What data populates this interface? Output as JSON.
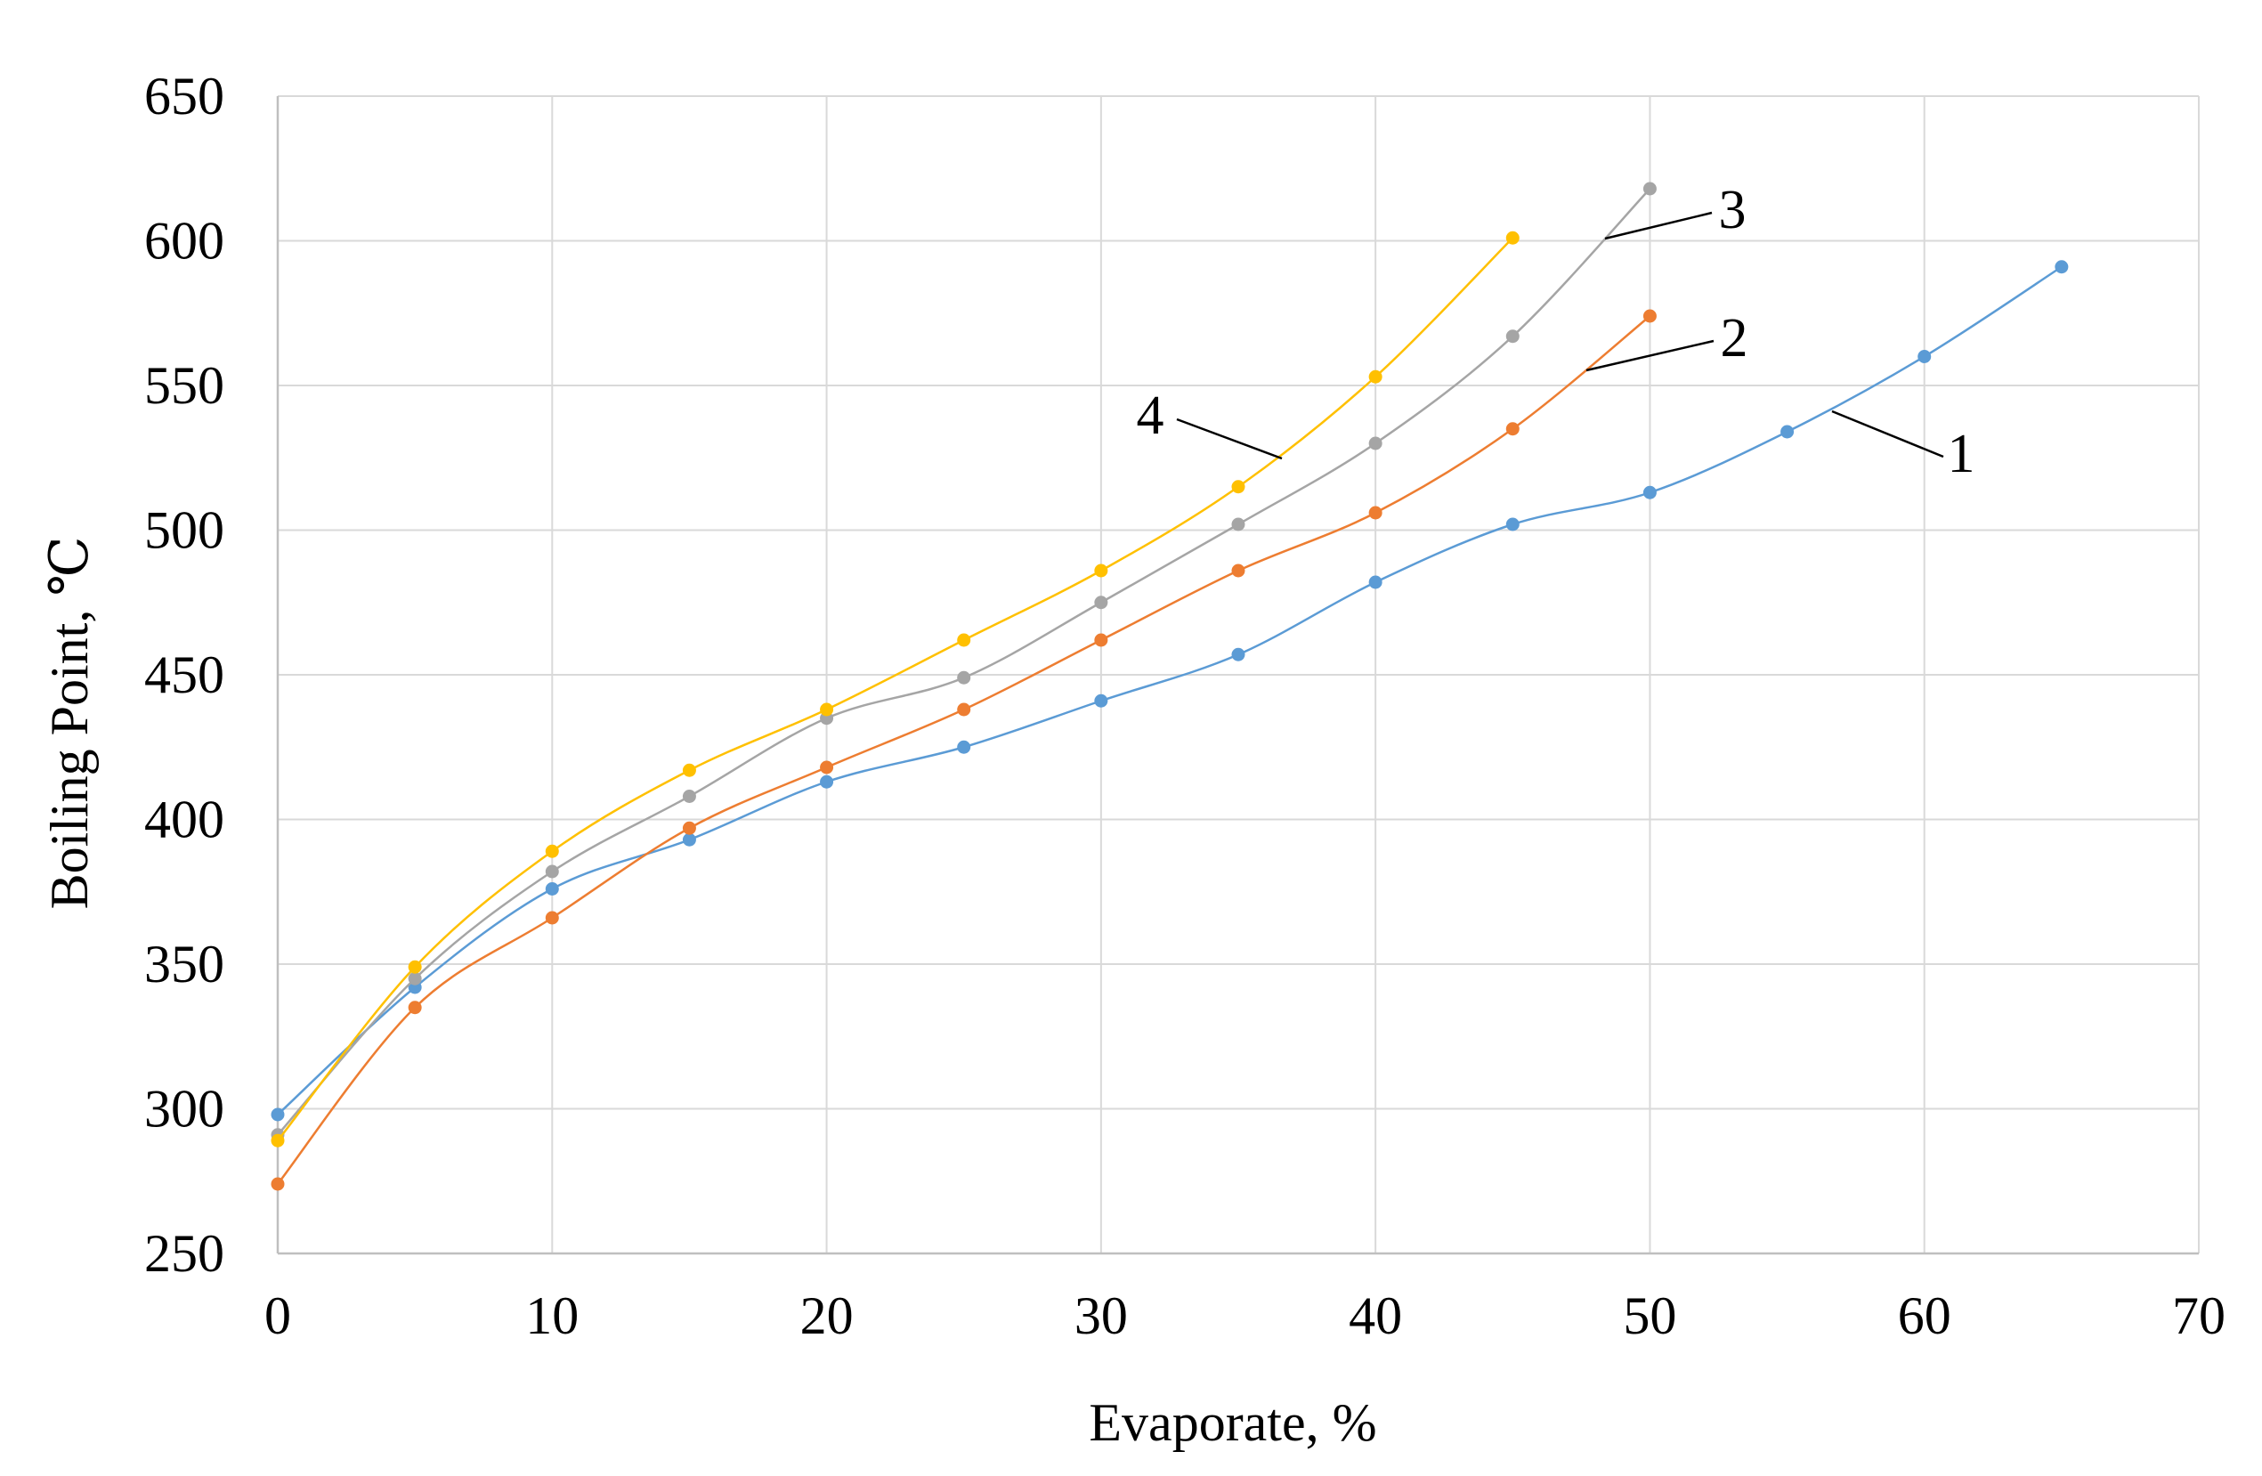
{
  "chart_data": {
    "type": "line",
    "title": "",
    "xlabel": "Evaporate,  %",
    "ylabel": "Boiling Point,  ℃",
    "xlim": [
      0,
      70
    ],
    "ylim": [
      250,
      650
    ],
    "xticks": [
      0,
      10,
      20,
      30,
      40,
      50,
      60,
      70
    ],
    "yticks": [
      250,
      300,
      350,
      400,
      450,
      500,
      550,
      600,
      650
    ],
    "grid": true,
    "legend": "none",
    "series": [
      {
        "name": "1",
        "color": "#5B9BD5",
        "x": [
          0,
          5,
          10,
          15,
          20,
          25,
          30,
          35,
          40,
          45,
          50,
          55,
          60,
          65
        ],
        "y": [
          298,
          342,
          376,
          393,
          413,
          425,
          441,
          457,
          482,
          502,
          513,
          534,
          560,
          591
        ]
      },
      {
        "name": "2",
        "color": "#ED7D31",
        "x": [
          0,
          5,
          10,
          15,
          20,
          25,
          30,
          35,
          40,
          45,
          50
        ],
        "y": [
          274,
          335,
          366,
          397,
          418,
          438,
          462,
          486,
          506,
          535,
          574
        ]
      },
      {
        "name": "3",
        "color": "#A5A5A5",
        "x": [
          0,
          5,
          10,
          15,
          20,
          25,
          30,
          35,
          40,
          45,
          50
        ],
        "y": [
          291,
          345,
          382,
          408,
          435,
          449,
          475,
          502,
          530,
          567,
          618
        ]
      },
      {
        "name": "4",
        "color": "#FFC000",
        "x": [
          0,
          5,
          10,
          15,
          20,
          25,
          30,
          35,
          40,
          45
        ],
        "y": [
          289,
          349,
          389,
          417,
          438,
          462,
          486,
          515,
          553,
          601
        ]
      }
    ],
    "annotations": [
      {
        "text": "1",
        "series": "1"
      },
      {
        "text": "2",
        "series": "2"
      },
      {
        "text": "3",
        "series": "3"
      },
      {
        "text": "4",
        "series": "4"
      }
    ]
  }
}
